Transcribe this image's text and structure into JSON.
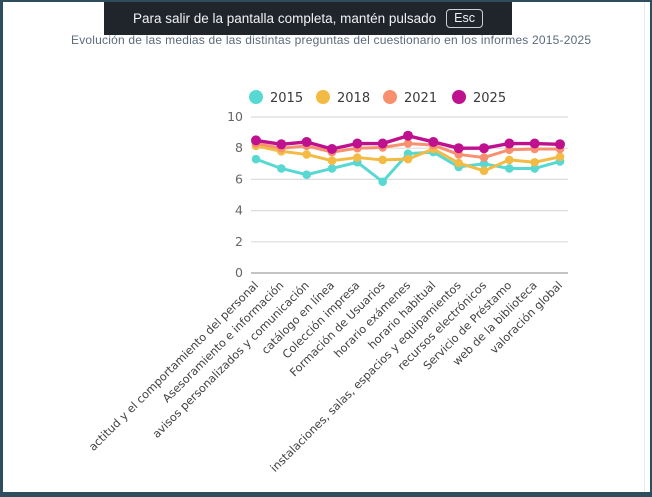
{
  "fullscreen_toast": {
    "message": "Para salir de la pantalla completa, mantén pulsado",
    "key_label": "Esc"
  },
  "page": {
    "title": "Evolución de las medias de las distintas preguntas del cuestionario en los informes  2015-2025"
  },
  "colors": {
    "border": "#2e4d5d",
    "toast_background": "#20242b",
    "title_text": "#5b6b7d",
    "gridline": "#dcdcdc",
    "axis_line": "#b0b0b0",
    "axis_text": "#666666",
    "label_text": "#404040"
  },
  "chart_data": {
    "type": "line",
    "title": "",
    "xlabel": "",
    "ylabel": "",
    "ylim": [
      0,
      10
    ],
    "yticks": [
      0,
      2,
      4,
      6,
      8,
      10
    ],
    "grid": true,
    "legend_position": "top",
    "categories": [
      "actitud y el comportamiento del personal",
      "Asesoramiento e información",
      "avisos personalizados y comunicación",
      "catálogo en línea",
      "Colección impresa",
      "Formación de Usuarios",
      "horario exámenes",
      "horario habitual",
      "instalaciones, salas, espacios y equipamientos",
      "recursos electrónicos",
      "Servicio de Préstamo",
      "web de la biblioteca",
      "valoración global"
    ],
    "series": [
      {
        "name": "2015",
        "color": "#57d8d2",
        "values": [
          7.3,
          6.7,
          6.3,
          6.7,
          7.1,
          5.85,
          7.65,
          7.75,
          6.8,
          7.0,
          6.7,
          6.7,
          7.15
        ]
      },
      {
        "name": "2018",
        "color": "#f4bb44",
        "values": [
          8.15,
          7.8,
          7.6,
          7.2,
          7.4,
          7.25,
          7.3,
          7.95,
          7.05,
          6.55,
          7.25,
          7.1,
          7.45
        ]
      },
      {
        "name": "2021",
        "color": "#f8906f",
        "values": [
          8.3,
          8.0,
          8.15,
          7.75,
          8.0,
          8.05,
          8.3,
          8.2,
          7.6,
          7.4,
          7.9,
          7.95,
          7.95
        ]
      },
      {
        "name": "2025",
        "color": "#be108f",
        "values": [
          8.5,
          8.25,
          8.4,
          7.95,
          8.3,
          8.3,
          8.8,
          8.4,
          8.0,
          8.0,
          8.3,
          8.3,
          8.25
        ]
      }
    ]
  }
}
